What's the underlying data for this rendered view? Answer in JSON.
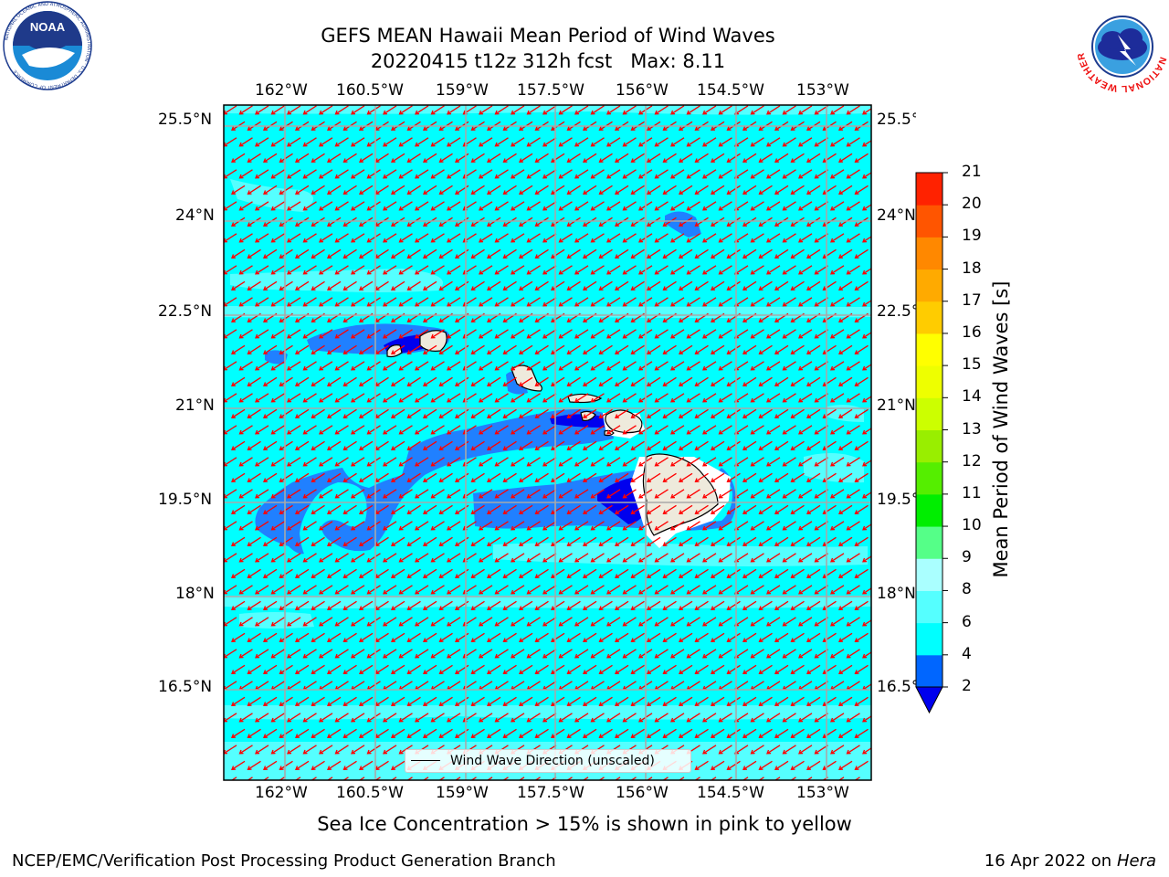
{
  "header": {
    "title_line1": "GEFS MEAN Hawaii Mean Period of Wind Waves",
    "title_line2": "20220415 t12z 312h fcst   Max: 8.11"
  },
  "logos": {
    "left": {
      "name": "noaa-logo",
      "text": "NOAA",
      "ring_text": "NATIONAL OCEANIC AND ATMOSPHERIC ADMINISTRATION · U.S. DEPARTMENT OF COMMERCE"
    },
    "right": {
      "name": "national-weather-service-logo",
      "ring_text": "NATIONAL WEATHER SERVICE"
    }
  },
  "map": {
    "lon_labels": [
      "162°W",
      "160.5°W",
      "159°W",
      "157.5°W",
      "156°W",
      "154.5°W",
      "153°W"
    ],
    "lat_labels": [
      "25.5°N",
      "24°N",
      "22.5°N",
      "21°N",
      "19.5°N",
      "18°N",
      "16.5°N"
    ],
    "lon_extent": [
      -163.0,
      -152.25
    ],
    "lat_extent": [
      14.75,
      25.75
    ],
    "ocean_color": "#00ffff",
    "light_color": "#55ffff",
    "blue_color": "#2080ff",
    "dark_blue_color": "#0000ee",
    "land_color": "#eeeadc",
    "arrow_color": "#ff0000",
    "arrow_direction": "toward southwest (from east-northeast)",
    "legend_label": "Wind Wave Direction (unscaled)",
    "gridlines": true
  },
  "colorbar": {
    "label": "Mean Period of Wind Waves [s]",
    "ticks": [
      "2",
      "4",
      "6",
      "8",
      "9",
      "10",
      "11",
      "12",
      "13",
      "14",
      "15",
      "16",
      "17",
      "18",
      "19",
      "20",
      "21"
    ],
    "colors": [
      "#0066ff",
      "#00ffff",
      "#55ffff",
      "#aaffff",
      "#55ff88",
      "#00ee00",
      "#55ee00",
      "#99ee00",
      "#ccff00",
      "#eeff00",
      "#ffff00",
      "#ffcc00",
      "#ffaa00",
      "#ff8800",
      "#ff5500",
      "#ff2200"
    ],
    "under_color": "#0000ee"
  },
  "annotation": "Sea Ice Concentration > 15% is shown in pink to yellow",
  "footer": {
    "left": "NCEP/EMC/Verification Post Processing Product Generation Branch",
    "date": "16 Apr 2022 on ",
    "machine": "Hera"
  }
}
